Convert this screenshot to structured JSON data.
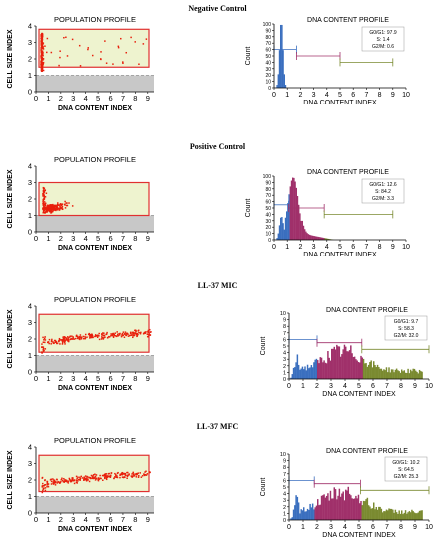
{
  "sections": [
    {
      "title": "Negative Control",
      "population": {
        "title": "POPULATION PROFILE",
        "xlabel": "DNA CONTENT INDEX",
        "ylabel": "CELL SIZE INDEX",
        "xticks": [
          "0",
          "1",
          "2",
          "3",
          "4",
          "5",
          "6",
          "7",
          "8",
          "9"
        ],
        "yticks": [
          "0",
          "1",
          "2",
          "3",
          "4"
        ],
        "gate": [
          1.5,
          3.8
        ]
      },
      "dna": {
        "title": "DNA CONTENT PROFILE",
        "xlabel": "DNA CONTENT INDEX",
        "ylabel": "Count",
        "xticks": [
          "0",
          "1",
          "2",
          "3",
          "4",
          "5",
          "6",
          "7",
          "8",
          "9",
          "10"
        ],
        "yticks": [
          "0",
          "10",
          "20",
          "30",
          "40",
          "50",
          "60",
          "70",
          "80",
          "90",
          "100"
        ],
        "legend": [
          "G0/G1: 97.9",
          "S: 1.4",
          "G2/M: 0.6"
        ],
        "regions": [
          {
            "name": "G0/G1",
            "x": [
              0,
              1.7
            ],
            "y": 60,
            "color": "#3a6fbf"
          },
          {
            "name": "S",
            "x": [
              1.7,
              5
            ],
            "y": 50,
            "color": "#a0306a"
          },
          {
            "name": "G2/M",
            "x": [
              5,
              9
            ],
            "y": 40,
            "color": "#7a8a30"
          }
        ]
      }
    },
    {
      "title": "Positive Control",
      "population": {
        "title": "POPULATION PROFILE",
        "xlabel": "DNA CONTENT INDEX",
        "ylabel": "CELL SIZE INDEX",
        "xticks": [
          "0",
          "1",
          "2",
          "3",
          "4",
          "5",
          "6",
          "7",
          "8",
          "9"
        ],
        "yticks": [
          "0",
          "1",
          "2",
          "3",
          "4"
        ],
        "gate": [
          1.0,
          3.0
        ]
      },
      "dna": {
        "title": "DNA CONTENT PROFILE",
        "xlabel": "DNA CONTENT INDEX",
        "ylabel": "Count",
        "xticks": [
          "0",
          "1",
          "2",
          "3",
          "4",
          "5",
          "6",
          "7",
          "8",
          "9",
          "10"
        ],
        "yticks": [
          "0",
          "10",
          "20",
          "30",
          "40",
          "50",
          "60",
          "70",
          "80",
          "90",
          "100"
        ],
        "legend": [
          "G0/G1: 12.6",
          "S: 84.2",
          "G2/M: 3.3"
        ],
        "regions": [
          {
            "name": "G0/G1",
            "x": [
              0,
              1.1
            ],
            "y": 55,
            "color": "#3a6fbf"
          },
          {
            "name": "S",
            "x": [
              1.1,
              3.8
            ],
            "y": 50,
            "color": "#a0306a"
          },
          {
            "name": "G2/M",
            "x": [
              3.8,
              9
            ],
            "y": 40,
            "color": "#7a8a30"
          }
        ]
      }
    },
    {
      "title": "LL-37 MIC",
      "population": {
        "title": "POPULATION PROFILE",
        "xlabel": "DNA CONTENT INDEX",
        "ylabel": "CELL SIZE INDEX",
        "xticks": [
          "0",
          "1",
          "2",
          "3",
          "4",
          "5",
          "6",
          "7",
          "8",
          "9"
        ],
        "yticks": [
          "0",
          "1",
          "2",
          "3",
          "4"
        ],
        "gate": [
          1.2,
          3.5
        ]
      },
      "dna": {
        "title": "DNA CONTENT PROFILE",
        "xlabel": "DNA CONTENT INDEX",
        "ylabel": "Count",
        "xticks": [
          "0",
          "1",
          "2",
          "3",
          "4",
          "5",
          "6",
          "7",
          "8",
          "9",
          "10"
        ],
        "yticks": [
          "0",
          "1",
          "2",
          "3",
          "4",
          "5",
          "6",
          "7",
          "8",
          "9",
          "10"
        ],
        "legend": [
          "G0/G1: 9.7",
          "S: 58.3",
          "G2/M: 32.0"
        ],
        "regions": [
          {
            "name": "G0/G1",
            "x": [
              0,
              2
            ],
            "y": 6,
            "color": "#3a6fbf"
          },
          {
            "name": "S",
            "x": [
              2,
              5.2
            ],
            "y": 5.5,
            "color": "#a0306a"
          },
          {
            "name": "G2/M",
            "x": [
              5.2,
              10
            ],
            "y": 4.5,
            "color": "#7a8a30"
          }
        ]
      }
    },
    {
      "title": "LL-37 MFC",
      "population": {
        "title": "POPULATION PROFILE",
        "xlabel": "DNA CONTENT INDEX",
        "ylabel": "CELL SIZE INDEX",
        "xticks": [
          "0",
          "1",
          "2",
          "3",
          "4",
          "5",
          "6",
          "7",
          "8",
          "9"
        ],
        "yticks": [
          "0",
          "1",
          "2",
          "3",
          "4"
        ],
        "gate": [
          1.3,
          3.5
        ]
      },
      "dna": {
        "title": "DNA CONTENT PROFILE",
        "xlabel": "DNA CONTENT INDEX",
        "ylabel": "Count",
        "xticks": [
          "0",
          "1",
          "2",
          "3",
          "4",
          "5",
          "6",
          "7",
          "8",
          "9",
          "10"
        ],
        "yticks": [
          "0",
          "1",
          "2",
          "3",
          "4",
          "5",
          "6",
          "7",
          "8",
          "9",
          "10"
        ],
        "legend": [
          "G0/G1: 10.2",
          "S: 64.5",
          "G2/M: 25.3"
        ],
        "regions": [
          {
            "name": "G0/G1",
            "x": [
              0,
              1.8
            ],
            "y": 6,
            "color": "#3a6fbf"
          },
          {
            "name": "S",
            "x": [
              1.8,
              5.1
            ],
            "y": 5.5,
            "color": "#a0306a"
          },
          {
            "name": "G2/M",
            "x": [
              5.1,
              10
            ],
            "y": 4.5,
            "color": "#7a8a30"
          }
        ]
      }
    }
  ],
  "chart_data": [
    {
      "type": "scatter",
      "title": "POPULATION PROFILE",
      "xlabel": "DNA CONTENT INDEX",
      "ylabel": "CELL SIZE INDEX",
      "xlim": [
        0,
        9.5
      ],
      "ylim": [
        0,
        4
      ]
    },
    {
      "type": "bar",
      "title": "DNA CONTENT PROFILE",
      "xlabel": "DNA CONTENT INDEX",
      "ylabel": "Count",
      "series": [
        {
          "name": "G0/G1",
          "values": [
            97.9
          ]
        },
        {
          "name": "S",
          "values": [
            1.4
          ]
        },
        {
          "name": "G2/M",
          "values": [
            0.6
          ]
        }
      ]
    },
    {
      "type": "scatter",
      "title": "POPULATION PROFILE",
      "xlabel": "DNA CONTENT INDEX",
      "ylabel": "CELL SIZE INDEX",
      "xlim": [
        0,
        9.5
      ],
      "ylim": [
        0,
        4
      ]
    },
    {
      "type": "bar",
      "title": "DNA CONTENT PROFILE",
      "xlabel": "DNA CONTENT INDEX",
      "ylabel": "Count",
      "series": [
        {
          "name": "G0/G1",
          "values": [
            12.6
          ]
        },
        {
          "name": "S",
          "values": [
            84.2
          ]
        },
        {
          "name": "G2/M",
          "values": [
            3.3
          ]
        }
      ]
    },
    {
      "type": "scatter",
      "title": "POPULATION PROFILE",
      "xlabel": "DNA CONTENT INDEX",
      "ylabel": "CELL SIZE INDEX",
      "xlim": [
        0,
        9.5
      ],
      "ylim": [
        0,
        4
      ]
    },
    {
      "type": "bar",
      "title": "DNA CONTENT PROFILE",
      "xlabel": "DNA CONTENT INDEX",
      "ylabel": "Count",
      "series": [
        {
          "name": "G0/G1",
          "values": [
            9.7
          ]
        },
        {
          "name": "S",
          "values": [
            58.3
          ]
        },
        {
          "name": "G2/M",
          "values": [
            32.0
          ]
        }
      ]
    },
    {
      "type": "scatter",
      "title": "POPULATION PROFILE",
      "xlabel": "DNA CONTENT INDEX",
      "ylabel": "CELL SIZE INDEX",
      "xlim": [
        0,
        9.5
      ],
      "ylim": [
        0,
        4
      ]
    },
    {
      "type": "bar",
      "title": "DNA CONTENT PROFILE",
      "xlabel": "DNA CONTENT INDEX",
      "ylabel": "Count",
      "series": [
        {
          "name": "G0/G1",
          "values": [
            10.2
          ]
        },
        {
          "name": "S",
          "values": [
            64.5
          ]
        },
        {
          "name": "G2/M",
          "values": [
            25.3
          ]
        }
      ]
    }
  ],
  "colors": {
    "scatter": "#e8200c",
    "gate_fill": "#eef3cf",
    "gate_stroke": "#e03030",
    "debris": "#c8c8c8"
  }
}
